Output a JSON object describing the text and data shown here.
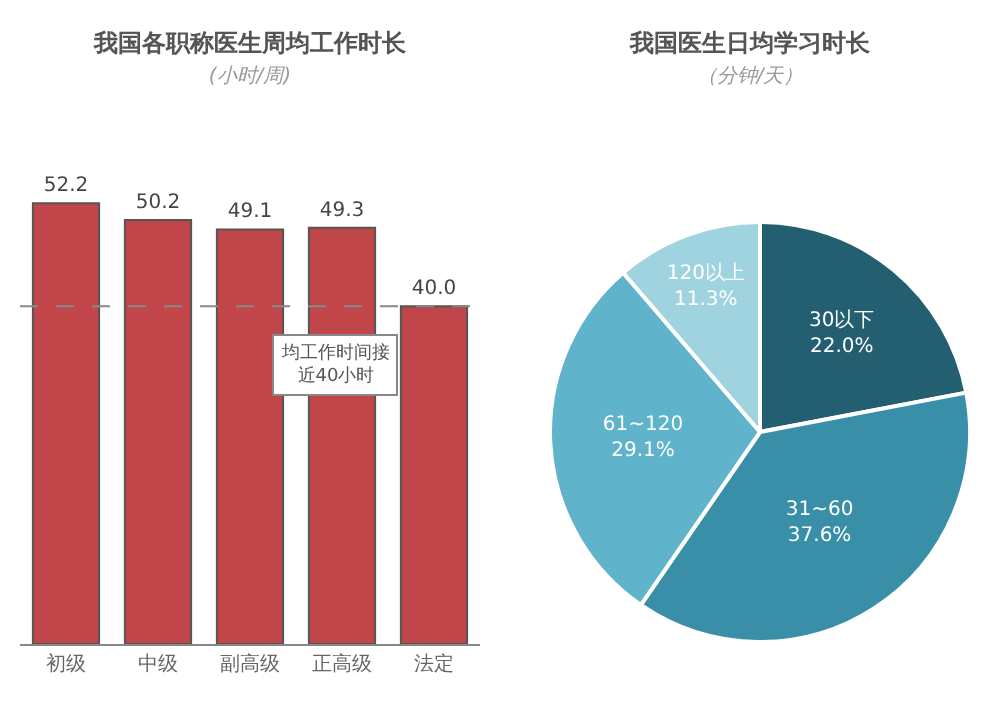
{
  "chart_data": [
    {
      "type": "bar",
      "title": "我国各职称医生周均工作时长",
      "subtitle": "(小时/周)",
      "categories": [
        "初级",
        "中级",
        "副高级",
        "正高级",
        "法定"
      ],
      "values": [
        52.2,
        50.2,
        49.1,
        49.3,
        40.0
      ],
      "value_labels": [
        "52.2",
        "50.2",
        "49.1",
        "49.3",
        "40.0"
      ],
      "color": "#c0464a",
      "legend": false,
      "ref_lines": [
        {
          "axis": "y",
          "value": 40,
          "line_style": "dashed",
          "color": "#888888"
        }
      ],
      "annotations": [
        "均工作时间接近40小时"
      ]
    },
    {
      "type": "pie",
      "title": "我国医生日均学习时长",
      "subtitle": "（分钟/天）",
      "categories": [
        "30以下",
        "31~60",
        "61~120",
        "120以上"
      ],
      "values": [
        22.0,
        37.6,
        29.1,
        11.3
      ],
      "value_labels": [
        "22.0%",
        "37.6%",
        "29.1%",
        "11.3%"
      ],
      "colors": [
        "#235f70",
        "#3a8fa8",
        "#5fb3cb",
        "#9fd3e0"
      ],
      "legend": false
    }
  ]
}
